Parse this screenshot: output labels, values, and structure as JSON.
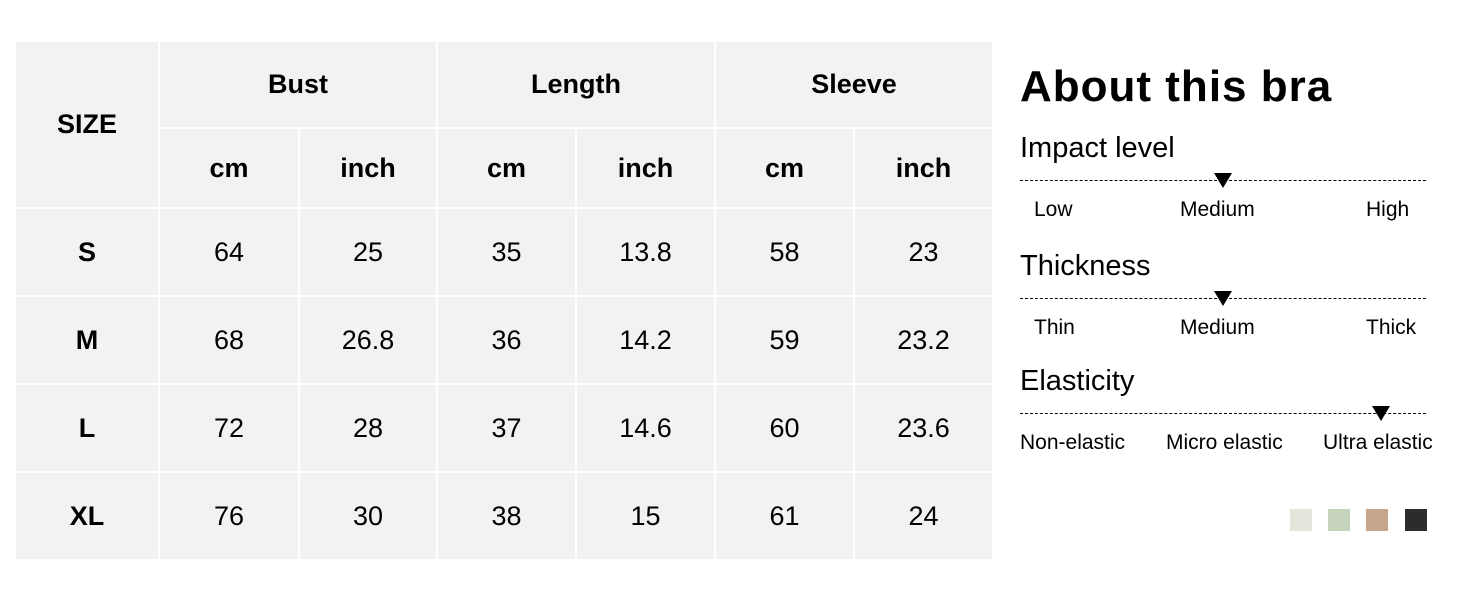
{
  "table": {
    "size_header": "SIZE",
    "groups": [
      "Bust",
      "Length",
      "Sleeve"
    ],
    "units": [
      "cm",
      "inch",
      "cm",
      "inch",
      "cm",
      "inch"
    ],
    "rows": [
      [
        "S",
        "64",
        "25",
        "35",
        "13.8",
        "58",
        "23"
      ],
      [
        "M",
        "68",
        "26.8",
        "36",
        "14.2",
        "59",
        "23.2"
      ],
      [
        "L",
        "72",
        "28",
        "37",
        "14.6",
        "60",
        "23.6"
      ],
      [
        "XL",
        "76",
        "30",
        "38",
        "15",
        "61",
        "24"
      ]
    ]
  },
  "about": {
    "title": "About this bra",
    "attributes": [
      {
        "name": "Impact level",
        "scale": [
          "Low",
          "Medium",
          "High"
        ],
        "selected": "Medium",
        "level": 0.5
      },
      {
        "name": "Thickness",
        "scale": [
          "Thin",
          "Medium",
          "Thick"
        ],
        "selected": "Medium",
        "level": 0.5
      },
      {
        "name": "Elasticity",
        "scale": [
          "Non-elastic",
          "Micro elastic",
          "Ultra elastic"
        ],
        "selected": "Ultra elastic",
        "level": 0.89
      }
    ],
    "colors": [
      "#e4e4da",
      "#c6d3bb",
      "#c6a58a",
      "#2a2c2e"
    ]
  }
}
